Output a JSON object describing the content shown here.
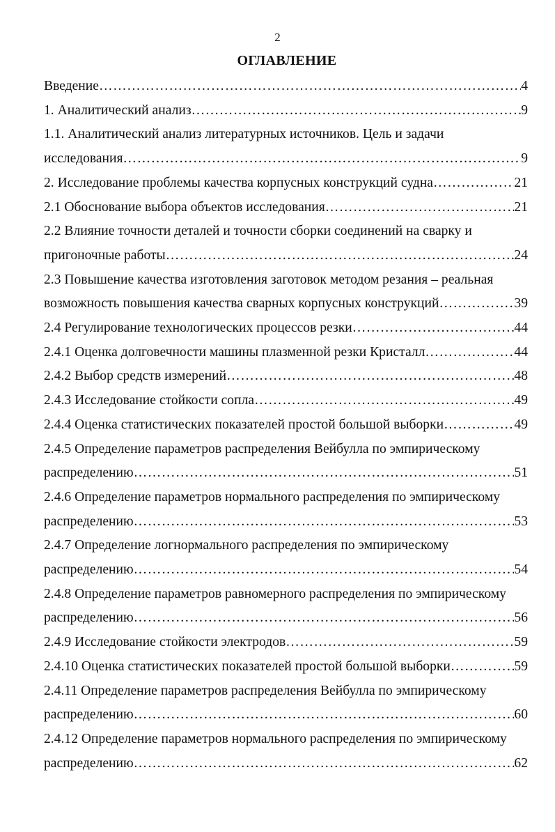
{
  "page_number": "2",
  "title": "ОГЛАВЛЕНИЕ",
  "entries": [
    {
      "lines": [
        "Введение"
      ],
      "page": "4"
    },
    {
      "lines": [
        "1. Аналитический анализ "
      ],
      "page": "9"
    },
    {
      "lines": [
        "1.1. Аналитический анализ литературных источников. Цель и задачи",
        "исследования"
      ],
      "page": "9"
    },
    {
      "lines": [
        "2. Исследование проблемы качества корпусных конструкций судна"
      ],
      "page": "21"
    },
    {
      "lines": [
        "2.1 Обоснование выбора объектов исследования"
      ],
      "page": "21"
    },
    {
      "lines": [
        "2.2 Влияние точности деталей и точности сборки соединений на сварку и",
        "пригоночные работы"
      ],
      "page": "24"
    },
    {
      "lines": [
        "2.3 Повышение качества изготовления заготовок методом резания – реальная",
        "возможность повышения качества сварных корпусных конструкций"
      ],
      "page": "39"
    },
    {
      "lines": [
        "2.4  Регулирование технологических процессов резки"
      ],
      "page": "44"
    },
    {
      "lines": [
        "2.4.1 Оценка долговечности машины плазменной резки Кристалл"
      ],
      "page": "44"
    },
    {
      "lines": [
        "2.4.2 Выбор средств измерений"
      ],
      "page": "48"
    },
    {
      "lines": [
        "2.4.3 Исследование стойкости сопла"
      ],
      "page": "49"
    },
    {
      "lines": [
        "2.4.4 Оценка статистических показателей простой большой выборки"
      ],
      "page": "49"
    },
    {
      "lines": [
        "2.4.5 Определение параметров распределения Вейбулла по эмпирическому",
        "распределению"
      ],
      "page": "51"
    },
    {
      "lines": [
        "2.4.6 Определение параметров нормального распределения по эмпирическому",
        "распределению"
      ],
      "page": "53"
    },
    {
      "lines": [
        "2.4.7 Определение логнормального распределения по эмпирическому",
        "распределению"
      ],
      "page": "54"
    },
    {
      "lines": [
        "2.4.8 Определение параметров равномерного распределения по эмпирическому",
        "распределению"
      ],
      "page": "56"
    },
    {
      "lines": [
        "2.4.9 Исследование стойкости электродов"
      ],
      "page": "59"
    },
    {
      "lines": [
        "2.4.10 Оценка статистических показателей простой большой выборки"
      ],
      "page": "59"
    },
    {
      "lines": [
        "2.4.11 Определение параметров распределения Вейбулла по эмпирическому",
        "распределению"
      ],
      "page": "60"
    },
    {
      "lines": [
        "2.4.12 Определение параметров нормального распределения по эмпирическому",
        "распределению"
      ],
      "page": "62"
    }
  ]
}
